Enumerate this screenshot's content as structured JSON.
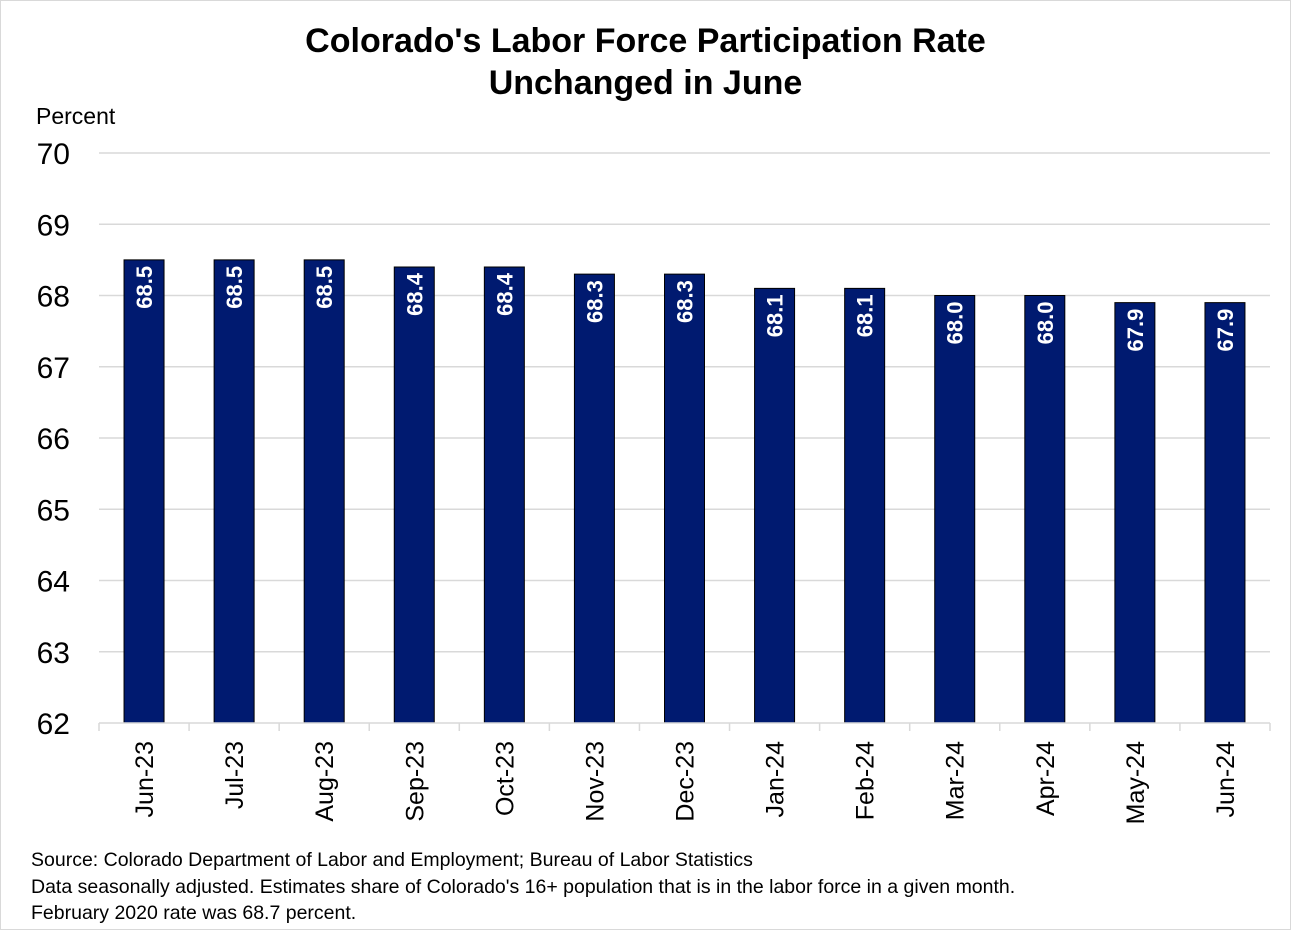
{
  "chart_data": {
    "type": "bar",
    "title_lines": [
      "Colorado's Labor Force Participation Rate",
      "Unchanged in June"
    ],
    "ylabel": "Percent",
    "xlabel": "",
    "ylim": [
      62,
      70
    ],
    "yticks": [
      "62",
      "63",
      "64",
      "65",
      "66",
      "67",
      "68",
      "69",
      "70"
    ],
    "grid": true,
    "categories": [
      "Jun-23",
      "Jul-23",
      "Aug-23",
      "Sep-23",
      "Oct-23",
      "Nov-23",
      "Dec-23",
      "Jan-24",
      "Feb-24",
      "Mar-24",
      "Apr-24",
      "May-24",
      "Jun-24"
    ],
    "values": [
      68.5,
      68.5,
      68.5,
      68.4,
      68.4,
      68.3,
      68.3,
      68.1,
      68.1,
      68.0,
      68.0,
      67.9,
      67.9
    ],
    "data_labels": [
      "68.5",
      "68.5",
      "68.5",
      "68.4",
      "68.4",
      "68.3",
      "68.3",
      "68.1",
      "68.1",
      "68.0",
      "68.0",
      "67.9",
      "67.9"
    ],
    "colors": {
      "bar_fill": "#001a70",
      "bar_stroke": "#000000",
      "label_text": "#ffffff",
      "gridline": "#d9d9d9"
    }
  },
  "footer": {
    "source": "Source: Colorado Department of Labor and Employment; Bureau of Labor Statistics",
    "note": "Data seasonally adjusted. Estimates share of Colorado's 16+ population that is in the labor force in a given month.",
    "note2": "February 2020 rate was 68.7 percent."
  }
}
